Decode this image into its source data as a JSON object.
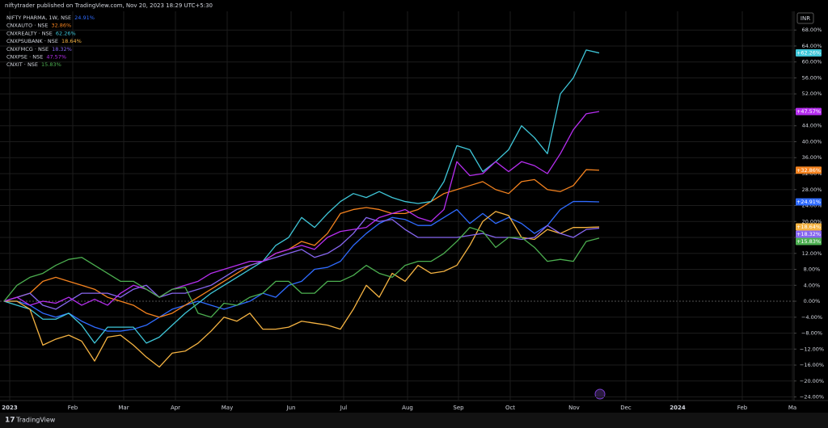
{
  "header": "niftytrader published on TradingView.com, Nov 20, 2023 18:29 UTC+5:30",
  "footer": "TradingView",
  "chart_data": {
    "type": "line",
    "currency": "INR",
    "x_labels": [
      "2023",
      "Feb",
      "Mar",
      "Apr",
      "May",
      "Jun",
      "Jul",
      "Aug",
      "Sep",
      "Oct",
      "Nov",
      "Dec",
      "2024",
      "Feb",
      "Ma"
    ],
    "ylim": [
      -24.9,
      72.7
    ],
    "yticks": [
      {
        "value": -24,
        "label": "−24.00%"
      },
      {
        "value": -20,
        "label": "−20.00%"
      },
      {
        "value": -16,
        "label": "−16.00%"
      },
      {
        "value": -12,
        "label": "−12.00%"
      },
      {
        "value": -8,
        "label": "−8.00%"
      },
      {
        "value": -4,
        "label": "−4.00%"
      },
      {
        "value": 0,
        "label": "0.00%"
      },
      {
        "value": 4,
        "label": "4.00%"
      },
      {
        "value": 8,
        "label": "8.00%"
      },
      {
        "value": 12,
        "label": "12.00%"
      },
      {
        "value": 16,
        "label": "16.00%"
      },
      {
        "value": 20,
        "label": "20.00%"
      },
      {
        "value": 24,
        "label": "24.00%"
      },
      {
        "value": 28,
        "label": "28.00%"
      },
      {
        "value": 32,
        "label": "32.00%"
      },
      {
        "value": 36,
        "label": "36.00%"
      },
      {
        "value": 40,
        "label": "40.00%"
      },
      {
        "value": 44,
        "label": "44.00%"
      },
      {
        "value": 48,
        "label": "48.00%"
      },
      {
        "value": 52,
        "label": "52.00%"
      },
      {
        "value": 56,
        "label": "56.00%"
      },
      {
        "value": 60,
        "label": "60.00%"
      },
      {
        "value": 64,
        "label": "64.00%"
      },
      {
        "value": 68,
        "label": "68.00%"
      }
    ],
    "grid": true,
    "series": [
      {
        "name": "NIFTY PHARMA, 1W, NSE",
        "legend_label": "24.91%",
        "axis_label": "+24.91%",
        "color": "#2f6bff",
        "values": [
          0,
          0,
          -1,
          -3,
          -4,
          -3,
          -5,
          -6.5,
          -7.5,
          -7.5,
          -7,
          -6,
          -4,
          -2,
          -1,
          0,
          -1,
          -2,
          -1,
          0,
          2,
          1,
          4,
          5,
          8,
          8.5,
          10,
          14,
          17,
          19.5,
          21,
          20.5,
          19,
          19,
          21,
          23,
          19.5,
          22,
          19.5,
          21,
          19.5,
          17,
          19,
          23,
          25,
          25,
          24.91
        ]
      },
      {
        "name": "CNXAUTO · NSE",
        "legend_label": "32.86%",
        "axis_label": "+32.86%",
        "color": "#f5831f",
        "values": [
          0,
          1,
          2,
          5,
          6,
          5,
          4,
          3,
          1,
          0,
          -1,
          -3,
          -4,
          -3,
          -1,
          1,
          3,
          5,
          7,
          9,
          10,
          12,
          13,
          15,
          14,
          17,
          22,
          23,
          23.5,
          23,
          22,
          22,
          23,
          25,
          27,
          28,
          29,
          30,
          28,
          27,
          30,
          30.5,
          28,
          27.5,
          29,
          33,
          32.86
        ]
      },
      {
        "name": "CNXREALTY · NSE",
        "legend_label": "62.26%",
        "axis_label": "+62.26%",
        "color": "#3fc6d8",
        "values": [
          0,
          -1,
          -2,
          -4.5,
          -4.5,
          -3,
          -6,
          -10.5,
          -6.5,
          -6.5,
          -6.5,
          -10.5,
          -9,
          -6,
          -3,
          -0.5,
          2,
          4,
          6,
          8,
          10,
          14,
          16,
          21,
          18.5,
          22,
          25,
          27,
          26,
          27.5,
          26,
          25,
          24.5,
          25,
          30,
          39,
          38,
          32.5,
          35,
          38,
          44,
          41,
          37,
          52,
          56,
          63,
          62.26
        ]
      },
      {
        "name": "CNXPSUBANK · NSE",
        "legend_label": "18.64%",
        "axis_label": "+18.64%",
        "color": "#f5b342",
        "values": [
          0,
          0,
          -2,
          -11,
          -9.5,
          -8.5,
          -10,
          -15,
          -9,
          -8.5,
          -11,
          -14,
          -16.5,
          -13,
          -12.5,
          -10.5,
          -7.5,
          -4,
          -5,
          -3,
          -7,
          -7,
          -6.5,
          -5,
          -5.5,
          -6,
          -7,
          -2,
          4,
          1,
          7,
          5,
          9,
          7,
          7.5,
          9,
          14,
          20,
          22.5,
          21.5,
          16,
          15.5,
          18,
          17,
          18.5,
          18.5,
          18.64
        ]
      },
      {
        "name": "CNXFMCG · NSE",
        "legend_label": "18.32%",
        "axis_label": "+18.32%",
        "color": "#8766f0",
        "values": [
          0,
          1,
          2,
          -1,
          -2,
          0,
          2,
          2,
          2,
          1,
          3,
          4,
          1,
          2,
          2,
          3,
          4,
          6,
          8,
          9,
          10,
          11,
          12,
          13,
          11,
          12,
          14,
          17,
          21,
          20,
          20.5,
          18,
          16,
          16,
          16,
          16,
          16.5,
          17,
          16,
          16,
          15.5,
          16,
          19,
          17,
          16,
          18,
          18.32
        ]
      },
      {
        "name": "CNXPSE · NSE",
        "legend_label": "47.57%",
        "axis_label": "+47.57%",
        "color": "#b62ef0",
        "values": [
          0,
          1,
          -1,
          0,
          -0.5,
          1,
          -1,
          0.5,
          -1,
          2,
          4,
          3,
          1,
          3,
          4,
          5,
          7,
          8,
          9,
          10,
          10,
          12,
          13,
          14,
          13,
          16,
          17.5,
          18,
          18.5,
          21,
          22,
          23,
          21,
          20,
          23,
          35,
          31.5,
          32,
          35,
          32.5,
          35,
          34,
          32,
          37,
          43,
          47,
          47.57
        ]
      },
      {
        "name": "CNXIT · NSE",
        "legend_label": "15.83%",
        "axis_label": "+15.83%",
        "color": "#4caf50",
        "values": [
          0,
          4,
          6,
          7,
          9,
          10.5,
          11,
          9,
          7,
          5,
          5,
          3,
          1,
          3,
          3.5,
          -3,
          -4,
          -0.5,
          -1,
          1,
          2,
          5,
          5,
          2,
          2,
          5,
          5,
          6.5,
          9,
          7,
          6,
          9,
          10,
          10,
          12,
          15,
          18.5,
          17.5,
          13.5,
          16,
          16,
          13.5,
          10,
          10.5,
          10,
          15,
          15.83
        ]
      }
    ]
  }
}
